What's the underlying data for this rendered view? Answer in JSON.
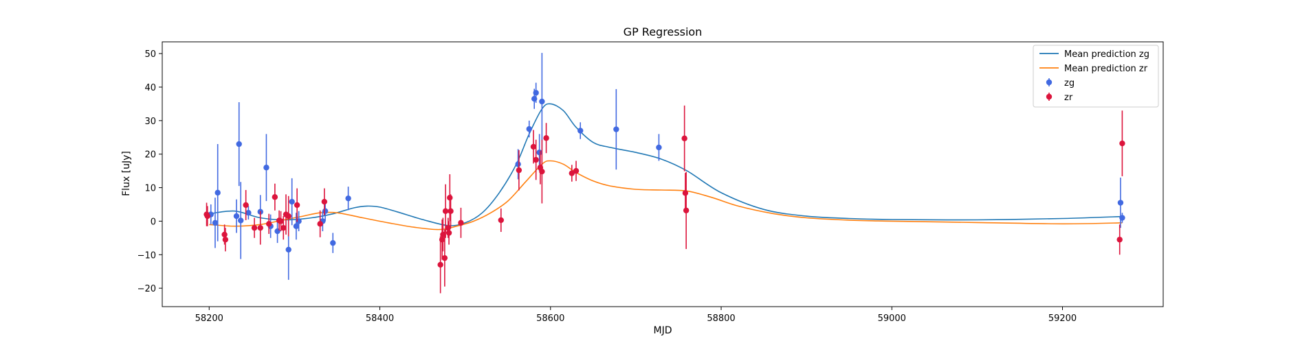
{
  "chart_data": {
    "type": "scatter",
    "title": "GP Regression",
    "xlabel": "MJD",
    "ylabel": "Flux [uJy]",
    "xlim": [
      58145,
      59318
    ],
    "ylim": [
      -25.5,
      53.5
    ],
    "xticks": [
      58200,
      58400,
      58600,
      58800,
      59000,
      59200
    ],
    "yticks": [
      -20,
      -10,
      0,
      10,
      20,
      30,
      40,
      50
    ],
    "xtick_labels": [
      "58200",
      "58400",
      "58600",
      "58800",
      "59000",
      "59200"
    ],
    "ytick_labels": [
      "−20",
      "−10",
      "0",
      "10",
      "20",
      "30",
      "40",
      "50"
    ],
    "grid": false,
    "legend_position": "top-right",
    "legend": [
      {
        "label": "Mean prediction zg",
        "kind": "line",
        "color": "#1f77b4"
      },
      {
        "label": "Mean prediction zr",
        "kind": "line",
        "color": "#ff7f0e"
      },
      {
        "label": "zg",
        "kind": "errorbar",
        "color": "#4169e1"
      },
      {
        "label": "zr",
        "kind": "errorbar",
        "color": "#dc143c"
      }
    ],
    "lines": [
      {
        "name": "Mean prediction zg",
        "color": "#1f77b4",
        "x": [
          58200,
          58230,
          58260,
          58290,
          58320,
          58345,
          58370,
          58385,
          58400,
          58420,
          58450,
          58480,
          58500,
          58520,
          58540,
          58560,
          58575,
          58590,
          58600,
          58615,
          58630,
          58650,
          58670,
          58700,
          58730,
          58760,
          58800,
          58850,
          58900,
          58950,
          59000,
          59100,
          59200,
          59270
        ],
        "y": [
          2.2,
          3.0,
          1.0,
          0.4,
          1.0,
          2.2,
          4.0,
          4.5,
          4.2,
          2.8,
          0.5,
          -1.3,
          -0.5,
          2.5,
          8.5,
          17.0,
          26.0,
          33.5,
          35.0,
          33.0,
          28.0,
          23.5,
          22.0,
          20.5,
          18.5,
          15.0,
          8.5,
          3.5,
          1.5,
          0.8,
          0.5,
          0.4,
          0.8,
          1.4
        ]
      },
      {
        "name": "Mean prediction zr",
        "color": "#ff7f0e",
        "x": [
          58200,
          58230,
          58260,
          58290,
          58310,
          58330,
          58350,
          58380,
          58410,
          58440,
          58470,
          58490,
          58510,
          58530,
          58550,
          58570,
          58590,
          58600,
          58615,
          58630,
          58650,
          58670,
          58700,
          58730,
          58760,
          58790,
          58820,
          58860,
          58900,
          58950,
          59000,
          59100,
          59200,
          59270
        ],
        "y": [
          -1.0,
          -1.5,
          -1.0,
          0.5,
          1.5,
          2.5,
          2.5,
          1.0,
          -0.5,
          -1.8,
          -2.5,
          -1.5,
          0.0,
          2.5,
          6.0,
          11.5,
          17.0,
          18.0,
          17.0,
          14.5,
          12.0,
          10.5,
          9.5,
          9.3,
          9.0,
          7.0,
          4.5,
          2.3,
          1.0,
          0.3,
          0.0,
          -0.4,
          -0.8,
          -0.5
        ]
      }
    ],
    "series": [
      {
        "name": "zg",
        "color": "#4169e1",
        "points": [
          {
            "x": 58202,
            "y": 2.0,
            "err": 3.0
          },
          {
            "x": 58207,
            "y": -0.5,
            "err": 7.5
          },
          {
            "x": 58210,
            "y": 8.5,
            "err": 14.5
          },
          {
            "x": 58232,
            "y": 1.5,
            "err": 5.0
          },
          {
            "x": 58235,
            "y": 23.0,
            "err": 12.5
          },
          {
            "x": 58237,
            "y": 0.2,
            "err": 11.5
          },
          {
            "x": 58246,
            "y": 2.5,
            "err": 2.0
          },
          {
            "x": 58260,
            "y": 2.8,
            "err": 5.0
          },
          {
            "x": 58267,
            "y": 16.0,
            "err": 10.0
          },
          {
            "x": 58272,
            "y": -1.5,
            "err": 3.5
          },
          {
            "x": 58280,
            "y": -3.0,
            "err": 3.5
          },
          {
            "x": 58293,
            "y": -8.5,
            "err": 9.0
          },
          {
            "x": 58297,
            "y": 5.8,
            "err": 7.0
          },
          {
            "x": 58302,
            "y": -1.5,
            "err": 4.0
          },
          {
            "x": 58305,
            "y": 0.0,
            "err": 3.0
          },
          {
            "x": 58333,
            "y": 0.0,
            "err": 3.0
          },
          {
            "x": 58336,
            "y": 3.0,
            "err": 3.0
          },
          {
            "x": 58345,
            "y": -6.5,
            "err": 3.0
          },
          {
            "x": 58363,
            "y": 6.8,
            "err": 3.5
          },
          {
            "x": 58562,
            "y": 17.0,
            "err": 4.5
          },
          {
            "x": 58575,
            "y": 27.5,
            "err": 2.5
          },
          {
            "x": 58581,
            "y": 36.5,
            "err": 3.0
          },
          {
            "x": 58583,
            "y": 38.3,
            "err": 3.0
          },
          {
            "x": 58587,
            "y": 20.5,
            "err": 5.5
          },
          {
            "x": 58590,
            "y": 35.7,
            "err": 14.5
          },
          {
            "x": 58635,
            "y": 27.0,
            "err": 2.5
          },
          {
            "x": 58677,
            "y": 27.4,
            "err": 12.0
          },
          {
            "x": 58727,
            "y": 22.0,
            "err": 4.0
          },
          {
            "x": 59268,
            "y": 5.5,
            "err": 7.5
          },
          {
            "x": 59270,
            "y": 1.0,
            "err": 1.5
          }
        ]
      },
      {
        "name": "zr",
        "color": "#dc143c",
        "points": [
          {
            "x": 58197,
            "y": 2.0,
            "err": 3.5
          },
          {
            "x": 58198,
            "y": 1.5,
            "err": 3.0
          },
          {
            "x": 58218,
            "y": -4.0,
            "err": 3.0
          },
          {
            "x": 58219,
            "y": -5.5,
            "err": 3.5
          },
          {
            "x": 58243,
            "y": 4.8,
            "err": 4.5
          },
          {
            "x": 58253,
            "y": -2.0,
            "err": 3.0
          },
          {
            "x": 58260,
            "y": -2.0,
            "err": 5.0
          },
          {
            "x": 58270,
            "y": -0.8,
            "err": 3.0
          },
          {
            "x": 58277,
            "y": 7.2,
            "err": 4.0
          },
          {
            "x": 58282,
            "y": 0.2,
            "err": 3.0
          },
          {
            "x": 58284,
            "y": 0.0,
            "err": 3.0
          },
          {
            "x": 58287,
            "y": -2.0,
            "err": 3.5
          },
          {
            "x": 58290,
            "y": 2.0,
            "err": 6.0
          },
          {
            "x": 58293,
            "y": 1.5,
            "err": 6.0
          },
          {
            "x": 58303,
            "y": 4.8,
            "err": 5.0
          },
          {
            "x": 58330,
            "y": -0.8,
            "err": 4.0
          },
          {
            "x": 58335,
            "y": 5.8,
            "err": 4.0
          },
          {
            "x": 58471,
            "y": -13.0,
            "err": 8.5
          },
          {
            "x": 58473,
            "y": -5.5,
            "err": 6.0
          },
          {
            "x": 58474,
            "y": -4.0,
            "err": 5.0
          },
          {
            "x": 58476,
            "y": -11.0,
            "err": 8.5
          },
          {
            "x": 58477,
            "y": 3.0,
            "err": 8.0
          },
          {
            "x": 58480,
            "y": -2.0,
            "err": 3.0
          },
          {
            "x": 58481,
            "y": -3.5,
            "err": 3.5
          },
          {
            "x": 58482,
            "y": 7.0,
            "err": 7.0
          },
          {
            "x": 58483,
            "y": 3.0,
            "err": 5.0
          },
          {
            "x": 58495,
            "y": -0.5,
            "err": 4.5
          },
          {
            "x": 58542,
            "y": 0.3,
            "err": 3.5
          },
          {
            "x": 58563,
            "y": 15.2,
            "err": 6.0
          },
          {
            "x": 58580,
            "y": 22.2,
            "err": 5.0
          },
          {
            "x": 58583,
            "y": 18.3,
            "err": 6.0
          },
          {
            "x": 58588,
            "y": 16.0,
            "err": 5.0
          },
          {
            "x": 58590,
            "y": 14.8,
            "err": 9.5
          },
          {
            "x": 58595,
            "y": 24.8,
            "err": 4.5
          },
          {
            "x": 58625,
            "y": 14.3,
            "err": 2.5
          },
          {
            "x": 58630,
            "y": 15.0,
            "err": 3.0
          },
          {
            "x": 58757,
            "y": 24.7,
            "err": 9.8
          },
          {
            "x": 58758,
            "y": 8.4,
            "err": 6.0
          },
          {
            "x": 58759,
            "y": 3.2,
            "err": 11.5
          },
          {
            "x": 59267,
            "y": -5.5,
            "err": 4.5
          },
          {
            "x": 59270,
            "y": 23.2,
            "err": 9.8
          }
        ]
      }
    ]
  }
}
